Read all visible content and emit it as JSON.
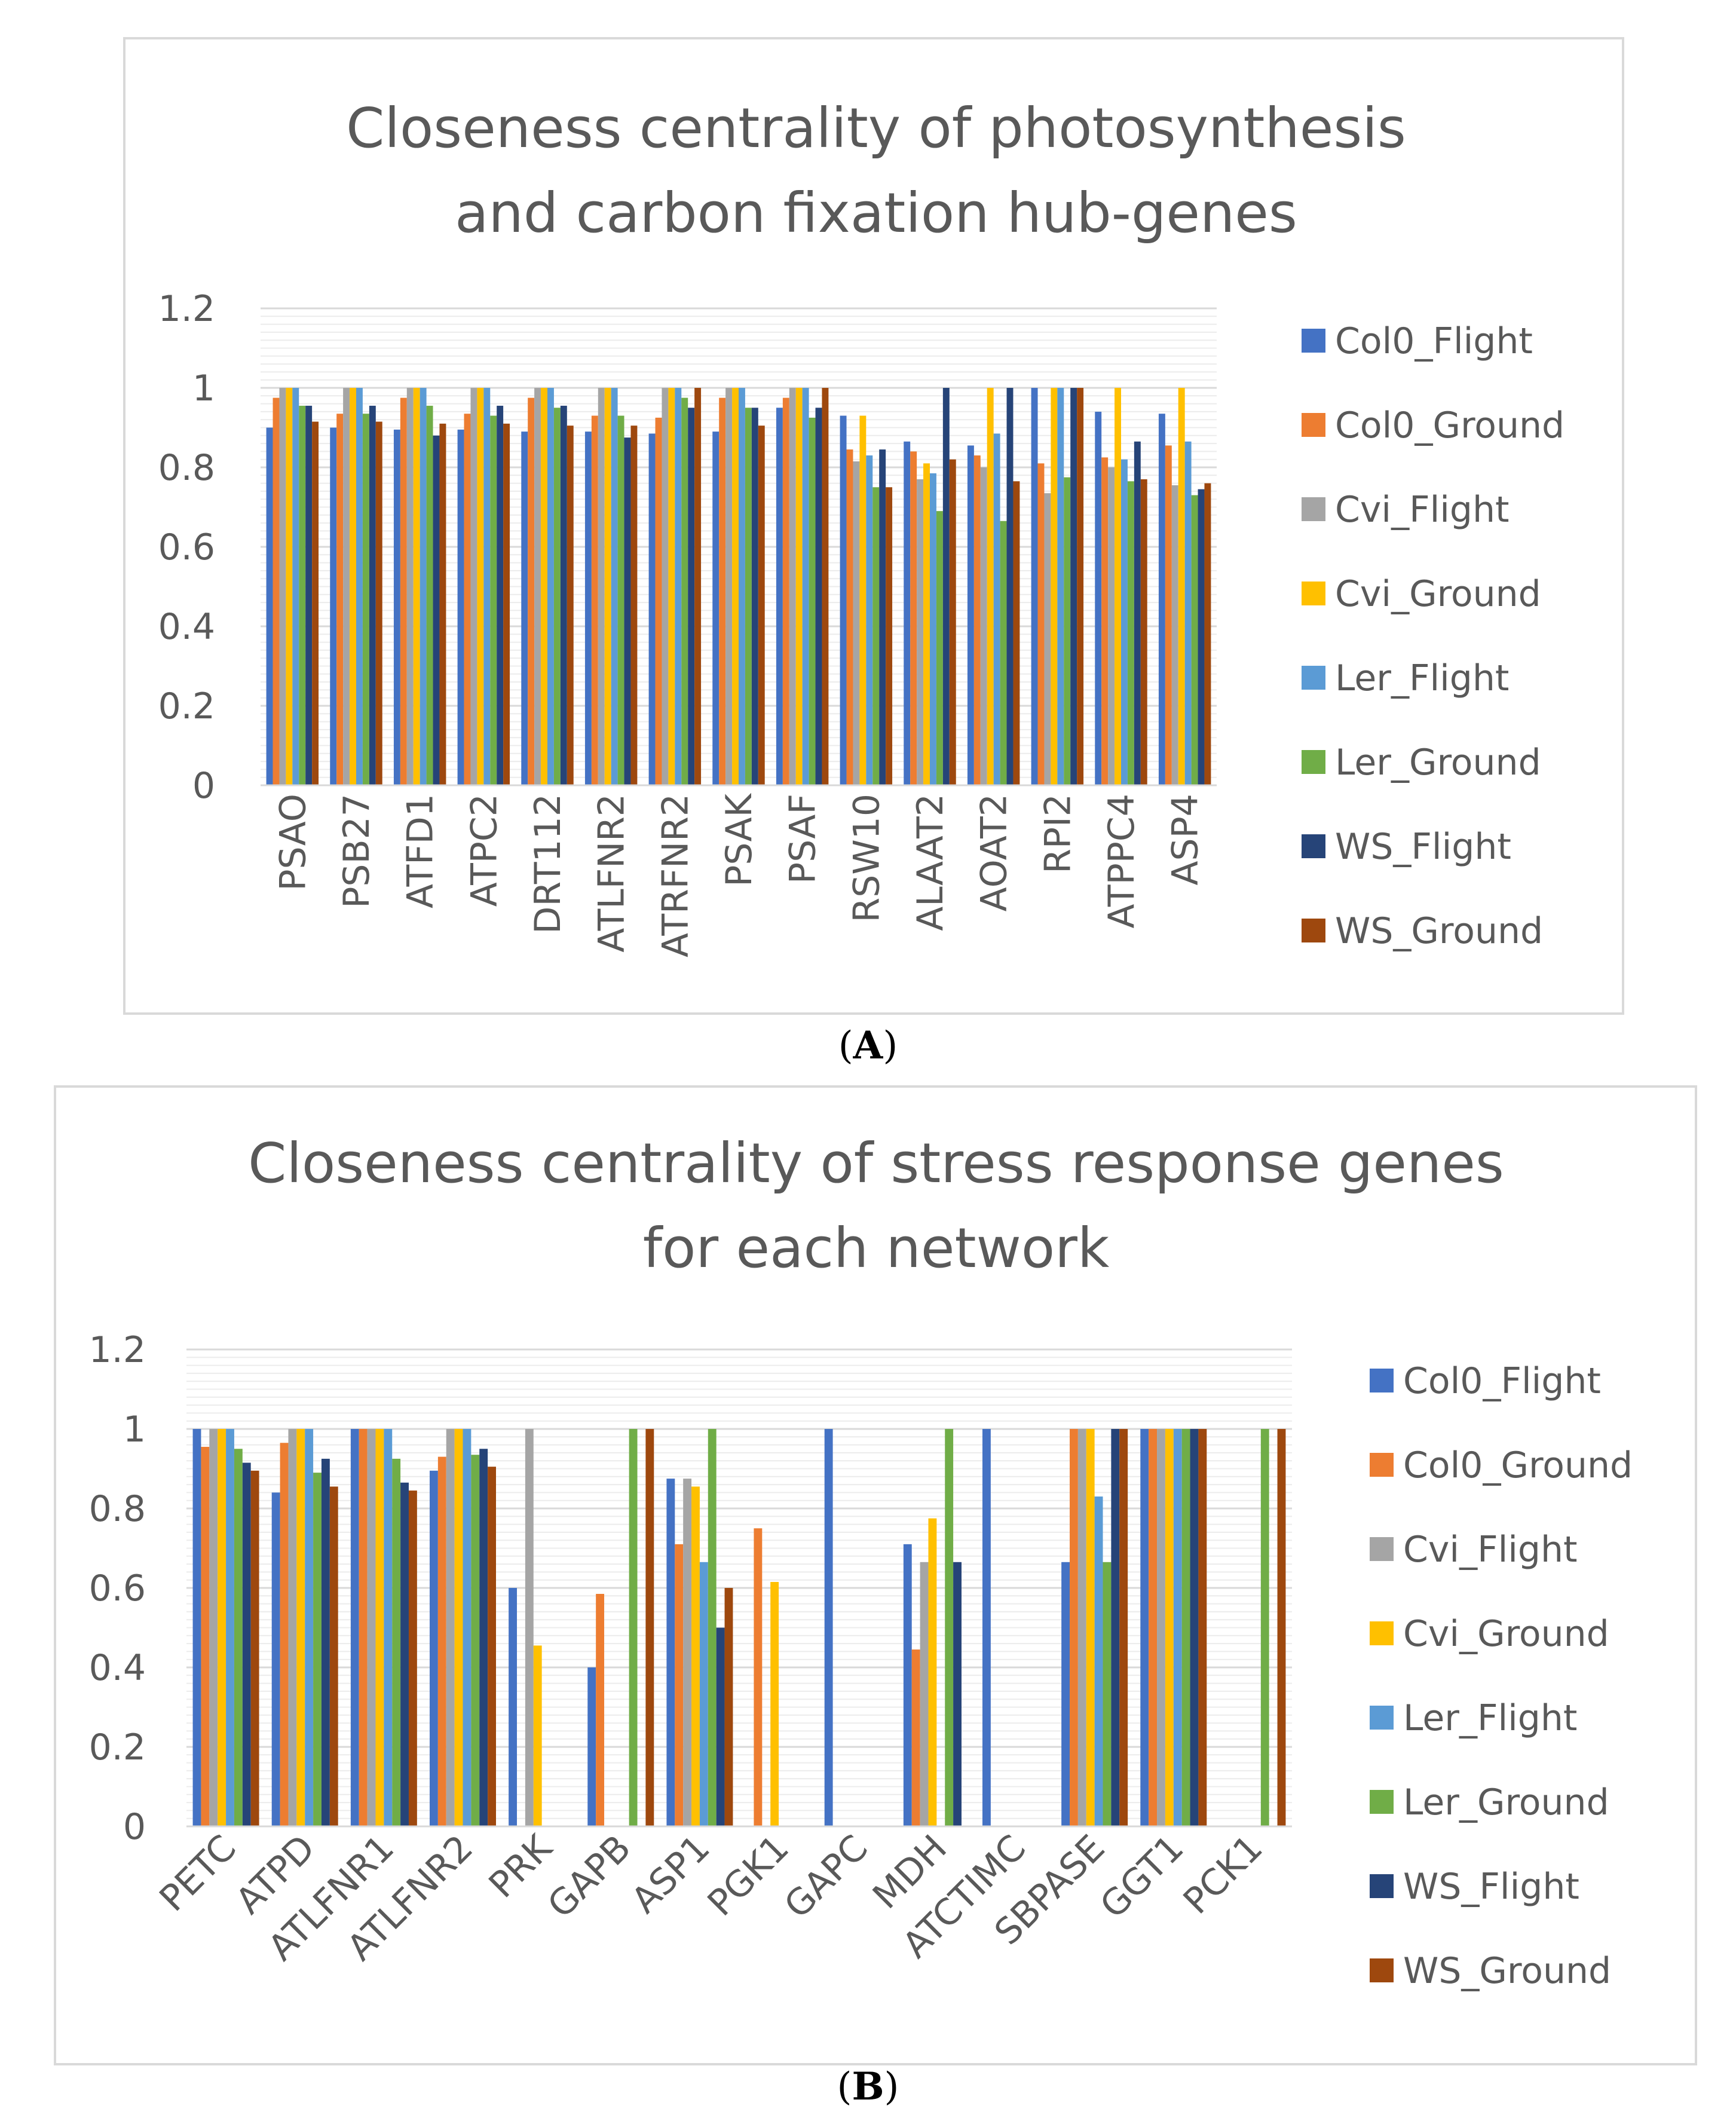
{
  "chart_data": [
    {
      "type": "bar",
      "title_lines": [
        "Closeness centrality of photosynthesis",
        "and carbon fixation hub-genes"
      ],
      "categories": [
        "PSAO",
        "PSB27",
        "ATFD1",
        "ATPC2",
        "DRT112",
        "ATLFNR2",
        "ATRFNR2",
        "PSAK",
        "PSAF",
        "RSW10",
        "ALAAT2",
        "AOAT2",
        "RPI2",
        "ATPPC4",
        "ASP4"
      ],
      "ylim": [
        0,
        1.2
      ],
      "yticks": [
        "0",
        "0.2",
        "0.4",
        "0.6",
        "0.8",
        "1",
        "1.2"
      ],
      "tick_rotation": -90,
      "legend_position": "right",
      "series": [
        {
          "name": "Col0_Flight",
          "color": "#4472c4",
          "values": [
            0.9,
            0.9,
            0.895,
            0.895,
            0.89,
            0.89,
            0.885,
            0.89,
            0.95,
            0.93,
            0.865,
            0.855,
            1.0,
            0.94,
            0.935
          ]
        },
        {
          "name": "Col0_Ground",
          "color": "#ed7d31",
          "values": [
            0.975,
            0.935,
            0.975,
            0.935,
            0.975,
            0.93,
            0.925,
            0.975,
            0.975,
            0.845,
            0.84,
            0.83,
            0.81,
            0.825,
            0.855
          ]
        },
        {
          "name": "Cvi_Flight",
          "color": "#a5a5a5",
          "values": [
            1.0,
            1.0,
            1.0,
            1.0,
            1.0,
            1.0,
            1.0,
            1.0,
            1.0,
            0.815,
            0.77,
            0.8,
            0.735,
            0.8,
            0.755
          ]
        },
        {
          "name": "Cvi_Ground",
          "color": "#ffc000",
          "values": [
            1.0,
            1.0,
            1.0,
            1.0,
            1.0,
            1.0,
            1.0,
            1.0,
            1.0,
            0.93,
            0.81,
            1.0,
            1.0,
            1.0,
            1.0
          ]
        },
        {
          "name": "Ler_Flight",
          "color": "#5b9bd5",
          "values": [
            1.0,
            1.0,
            1.0,
            1.0,
            1.0,
            1.0,
            1.0,
            1.0,
            1.0,
            0.83,
            0.785,
            0.885,
            1.0,
            0.82,
            0.865
          ]
        },
        {
          "name": "Ler_Ground",
          "color": "#70ad47",
          "values": [
            0.955,
            0.935,
            0.955,
            0.93,
            0.95,
            0.93,
            0.975,
            0.95,
            0.925,
            0.75,
            0.69,
            0.665,
            0.775,
            0.765,
            0.73
          ]
        },
        {
          "name": "WS_Flight",
          "color": "#264478",
          "values": [
            0.955,
            0.955,
            0.88,
            0.955,
            0.955,
            0.875,
            0.95,
            0.95,
            0.95,
            0.845,
            1.0,
            1.0,
            1.0,
            0.865,
            0.745
          ]
        },
        {
          "name": "WS_Ground",
          "color": "#9e480e",
          "values": [
            0.915,
            0.915,
            0.91,
            0.91,
            0.905,
            0.905,
            1.0,
            0.905,
            1.0,
            0.75,
            0.82,
            0.765,
            1.0,
            0.77,
            0.76
          ]
        }
      ]
    },
    {
      "type": "bar",
      "title_lines": [
        "Closeness centrality of stress response genes",
        "for each network"
      ],
      "categories": [
        "PETC",
        "ATPD",
        "ATLFNR1",
        "ATLFNR2",
        "PRK",
        "GAPB",
        "ASP1",
        "PGK1",
        "GAPC",
        "MDH",
        "ATCTIMC",
        "SBPASE",
        "GGT1",
        "PCK1"
      ],
      "ylim": [
        0,
        1.2
      ],
      "yticks": [
        "0",
        "0.2",
        "0.4",
        "0.6",
        "0.8",
        "1",
        "1.2"
      ],
      "tick_rotation": -45,
      "legend_position": "right",
      "series": [
        {
          "name": "Col0_Flight",
          "color": "#4472c4",
          "values": [
            1.0,
            0.84,
            1.0,
            0.895,
            0.6,
            0.4,
            0.875,
            0,
            1.0,
            0.71,
            1.0,
            0.665,
            1.0,
            0
          ]
        },
        {
          "name": "Col0_Ground",
          "color": "#ed7d31",
          "values": [
            0.955,
            0.965,
            1.0,
            0.93,
            0,
            0.585,
            0.71,
            0.75,
            0,
            0.445,
            0,
            1.0,
            1.0,
            0
          ]
        },
        {
          "name": "Cvi_Flight",
          "color": "#a5a5a5",
          "values": [
            1.0,
            1.0,
            1.0,
            1.0,
            1.0,
            0,
            0.875,
            0,
            0,
            0.665,
            0,
            1.0,
            1.0,
            0
          ]
        },
        {
          "name": "Cvi_Ground",
          "color": "#ffc000",
          "values": [
            1.0,
            1.0,
            1.0,
            1.0,
            0.455,
            0,
            0.855,
            0.615,
            0,
            0.775,
            0,
            1.0,
            1.0,
            0
          ]
        },
        {
          "name": "Ler_Flight",
          "color": "#5b9bd5",
          "values": [
            1.0,
            1.0,
            1.0,
            1.0,
            0,
            0,
            0.665,
            0,
            0,
            0,
            0,
            0.83,
            1.0,
            0
          ]
        },
        {
          "name": "Ler_Ground",
          "color": "#70ad47",
          "values": [
            0.95,
            0.89,
            0.925,
            0.935,
            0,
            1.0,
            1.0,
            0,
            0,
            1.0,
            0,
            0.665,
            1.0,
            1.0
          ]
        },
        {
          "name": "WS_Flight",
          "color": "#264478",
          "values": [
            0.915,
            0.925,
            0.865,
            0.95,
            0,
            0,
            0.5,
            0,
            0,
            0.665,
            0,
            1.0,
            1.0,
            0
          ]
        },
        {
          "name": "WS_Ground",
          "color": "#9e480e",
          "values": [
            0.895,
            0.855,
            0.845,
            0.905,
            0,
            1.0,
            0.6,
            0,
            0,
            0,
            0,
            1.0,
            1.0,
            1.0
          ]
        }
      ]
    }
  ],
  "captions": [
    "A",
    "B"
  ]
}
